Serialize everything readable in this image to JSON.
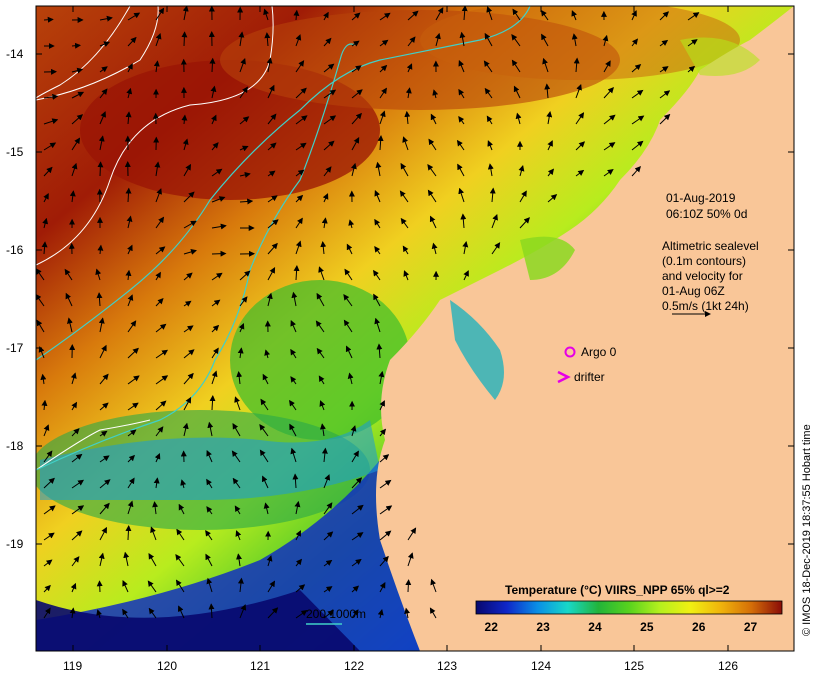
{
  "map": {
    "date_line1": "01-Aug-2019",
    "date_line2": "06:10Z  50% 0d",
    "altimetry_lines": [
      "Altimetric sealevel",
      "(0.1m contours)",
      "and velocity for",
      "01-Aug 06Z",
      "0.5m/s (1kt 24h)"
    ],
    "argo_label": "Argo 0",
    "drifter_label": "drifter",
    "depth_legend": "200  1000m",
    "credit": "© IMOS 18-Dec-2019 18:37:55 Hobart time",
    "lat_ticks": [
      "-14",
      "-15",
      "-16",
      "-17",
      "-18",
      "-19"
    ],
    "lon_ticks": [
      "119",
      "120",
      "121",
      "122",
      "123",
      "124",
      "125",
      "126"
    ],
    "colorbar": {
      "title": "Temperature (°C) VIIRS_NPP 65% ql>=2",
      "ticks": [
        "22",
        "23",
        "24",
        "25",
        "26",
        "27"
      ],
      "range": [
        21.7,
        27.6
      ],
      "stops": [
        "#08086e",
        "#0f26c8",
        "#0a8ee6",
        "#18d8c8",
        "#22b43a",
        "#58d21e",
        "#b4f01e",
        "#f0f012",
        "#f0b40c",
        "#d46e08",
        "#b02c08",
        "#8a0c08"
      ]
    },
    "land_color": "#f9c698",
    "argo_color": "#e600e6",
    "drifter_color": "#e600e6",
    "contour_color": "#ffffff",
    "isobath_color": "#40d0c8"
  }
}
